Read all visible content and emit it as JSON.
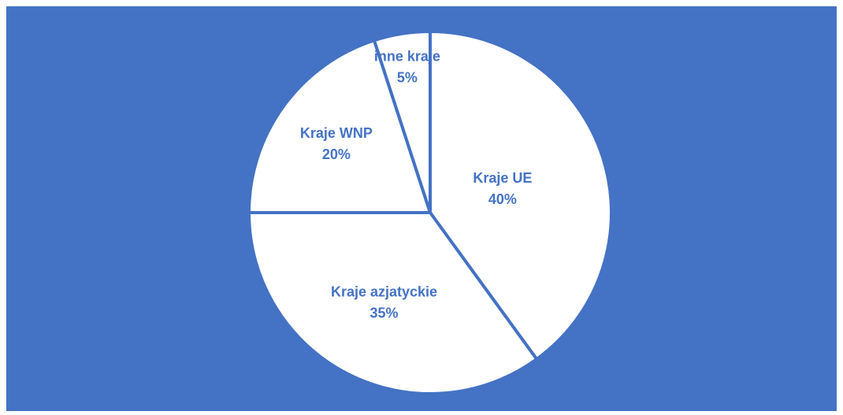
{
  "chart_data": {
    "type": "pie",
    "categories": [
      "Kraje UE",
      "Kraje azjatyckie",
      "Kraje WNP",
      "inne kraje"
    ],
    "values": [
      40,
      35,
      20,
      5
    ],
    "value_labels": [
      "40%",
      "35%",
      "20%",
      "5%"
    ],
    "slice_color": "#ffffff",
    "border_color": "#4472c4",
    "background_color": "#4472c4",
    "label_color": "#4472c4"
  }
}
